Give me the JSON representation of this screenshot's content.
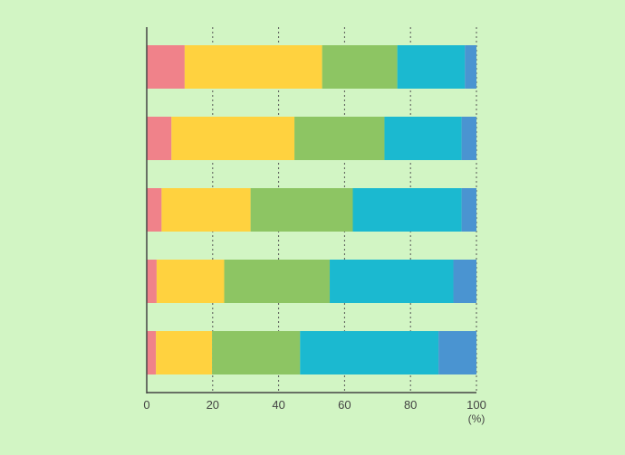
{
  "chart_data": {
    "type": "bar",
    "orientation": "horizontal",
    "stacked": true,
    "xlim": [
      0,
      100
    ],
    "xticks": [
      0,
      20,
      40,
      60,
      80,
      100
    ],
    "xunit": "(%)",
    "grid": "vertical dotted",
    "legend": "none",
    "categories": [
      "",
      "",
      "",
      "",
      ""
    ],
    "series": [
      {
        "name": "",
        "color": "#f0828a",
        "values": [
          11.5,
          7.5,
          4.5,
          3.0,
          2.8
        ]
      },
      {
        "name": "",
        "color": "#ffd23f",
        "values": [
          41.7,
          37.3,
          27.0,
          20.5,
          17.0
        ]
      },
      {
        "name": "",
        "color": "#8dc563",
        "values": [
          22.8,
          27.3,
          31.0,
          32.0,
          26.7
        ]
      },
      {
        "name": "",
        "color": "#1bb9d0",
        "values": [
          20.5,
          23.4,
          33.0,
          37.5,
          42.0
        ]
      },
      {
        "name": "",
        "color": "#4a94d1",
        "values": [
          3.5,
          4.5,
          4.5,
          7.0,
          11.5
        ]
      }
    ]
  }
}
